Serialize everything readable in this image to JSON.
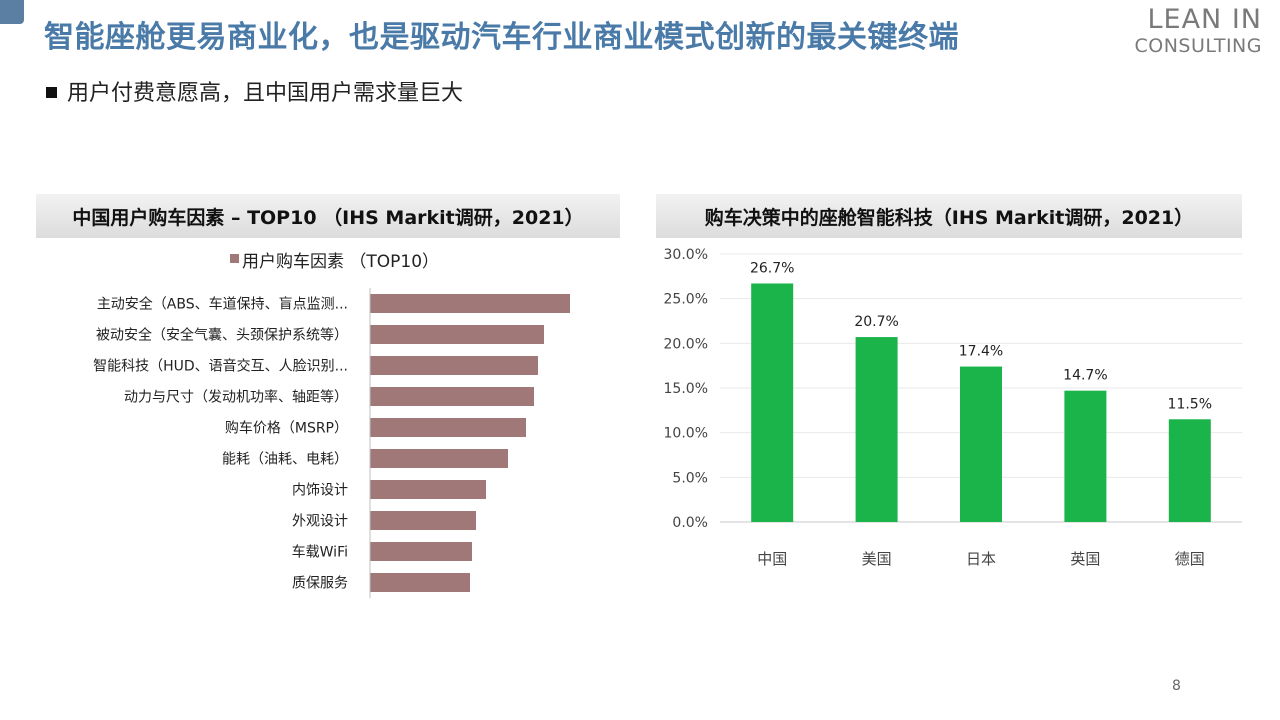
{
  "slide": {
    "title": "智能座舱更易商业化，也是驱动汽车行业商业模式创新的最关键终端",
    "bullet": "用户付费意愿高，且中国用户需求量巨大",
    "page_number": "8"
  },
  "logo": {
    "line1": "LEAN IN",
    "line2": "CONSULTING"
  },
  "colors": {
    "accent": "#4a7aa8",
    "bar_left": "#a07878",
    "bar_right": "#1bb44b"
  },
  "chart_data": [
    {
      "type": "bar",
      "orientation": "horizontal",
      "title": "中国用户购车因素 – TOP10 （IHS Markit调研，2021）",
      "legend": [
        "用户购车因素 （TOP10）"
      ],
      "categories": [
        "主动安全（ABS、车道保持、盲点监测...",
        "被动安全（安全气囊、头颈保护系统等）",
        "智能科技（HUD、语音交互、人脸识别...",
        "动力与尺寸（发动机功率、轴距等）",
        "购车价格（MSRP）",
        "能耗（油耗、电耗）",
        "内饰设计",
        "外观设计",
        "车载WiFi",
        "质保服务"
      ],
      "series": [
        {
          "name": "用户购车因素 （TOP10）",
          "values": [
            100,
            87,
            84,
            82,
            78,
            69,
            58,
            53,
            51,
            50
          ]
        }
      ],
      "xlim": [
        0,
        100
      ],
      "grid": false
    },
    {
      "type": "bar",
      "title": "购车决策中的座舱智能科技（IHS Markit调研，2021）",
      "categories": [
        "中国",
        "美国",
        "日本",
        "英国",
        "德国"
      ],
      "values": [
        26.7,
        20.7,
        17.4,
        14.7,
        11.5
      ],
      "data_labels": [
        "26.7%",
        "20.7%",
        "17.4%",
        "14.7%",
        "11.5%"
      ],
      "y_ticks": [
        "0.0%",
        "5.0%",
        "10.0%",
        "15.0%",
        "20.0%",
        "25.0%",
        "30.0%"
      ],
      "ylim": [
        0,
        30
      ],
      "grid": true
    }
  ]
}
